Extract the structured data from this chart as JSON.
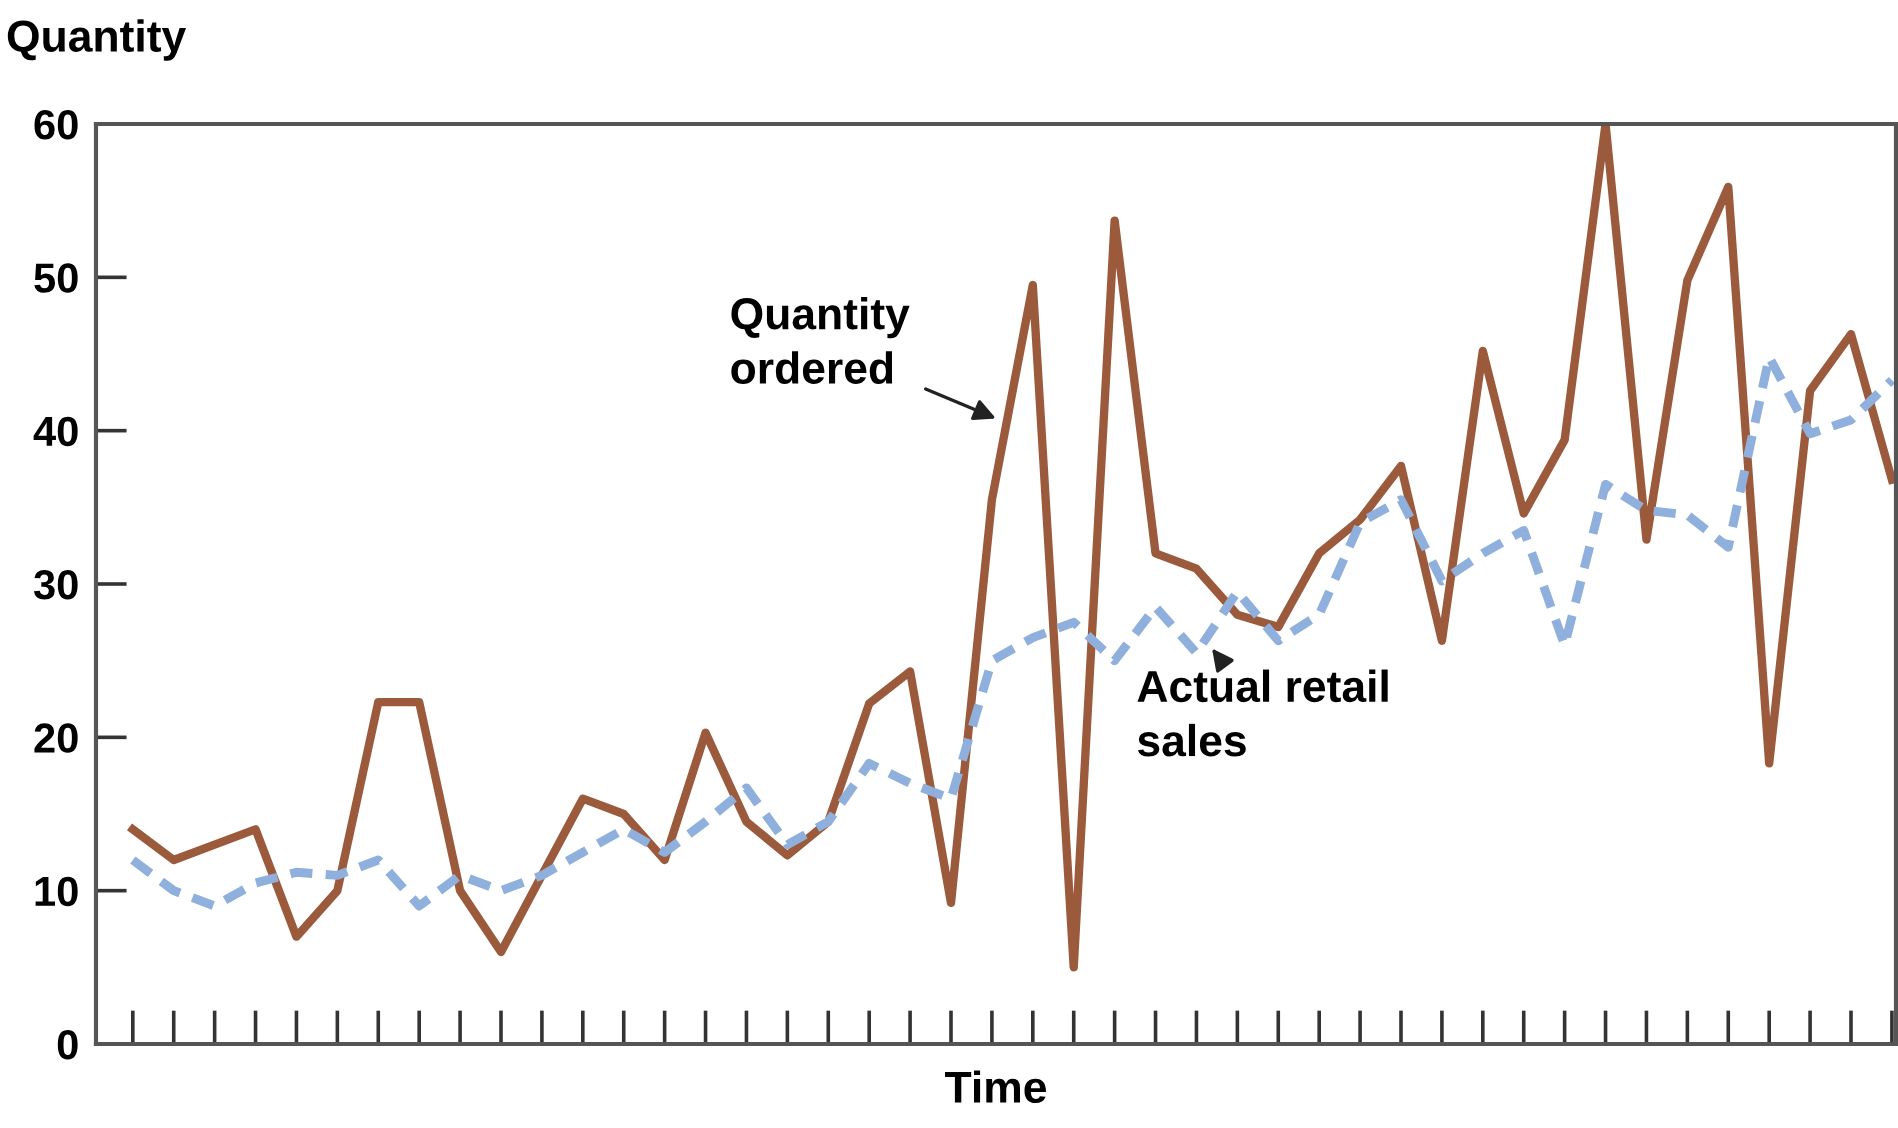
{
  "chart_data": {
    "type": "line",
    "xlabel": "Time",
    "ylabel": "Quantity",
    "categories": [
      null,
      null,
      null,
      null,
      null,
      null,
      null,
      null,
      null,
      null,
      null,
      null,
      null,
      null,
      null,
      null,
      null,
      null,
      null,
      null,
      null,
      null,
      null,
      null,
      null,
      null,
      null,
      null,
      null,
      null,
      null,
      null,
      null,
      null,
      null,
      null,
      null,
      null,
      null,
      null,
      null,
      null,
      null,
      null
    ],
    "series": [
      {
        "name": "Quantity ordered",
        "color": "#9c5a3c",
        "line_style": "solid",
        "values": [
          14,
          12,
          13,
          14,
          7,
          10,
          22.3,
          22.3,
          10,
          6,
          11,
          16,
          15,
          12,
          20.3,
          14.5,
          12.3,
          14.5,
          22.2,
          24.3,
          9.2,
          35.5,
          49.5,
          5,
          53.7,
          32,
          31,
          28,
          27.2,
          32,
          34.2,
          37.7,
          26.3,
          45.2,
          34.6,
          39.4,
          60,
          32.9,
          49.8,
          55.9,
          18.3,
          42.6,
          46.3,
          36.8
        ]
      },
      {
        "name": "Actual retail sales",
        "color": "#8fb0dc",
        "line_style": "dashed",
        "values": [
          12,
          10,
          9,
          10.5,
          11.2,
          11,
          12,
          9,
          11,
          10,
          11,
          12.5,
          14,
          12.5,
          14.5,
          16.7,
          13,
          14.5,
          18.3,
          17,
          16,
          25,
          26.5,
          27.5,
          25,
          28.5,
          25.5,
          29.5,
          26.3,
          28,
          34,
          35.5,
          30.2,
          32,
          33.5,
          26,
          36.5,
          34.8,
          34.5,
          32.4,
          44.8,
          39.8,
          40.7,
          43.3
        ]
      }
    ],
    "ylim": [
      0,
      60
    ],
    "yticks": [
      0,
      10,
      20,
      30,
      40,
      50,
      60
    ],
    "grid": false,
    "legend": false,
    "marker": "none",
    "tick_labels": "y"
  }
}
